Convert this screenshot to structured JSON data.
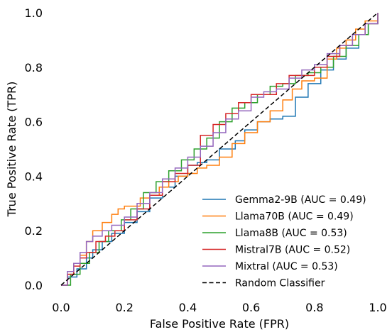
{
  "chart_data": {
    "type": "line",
    "title": "",
    "xlabel": "False Positive Rate (FPR)",
    "ylabel": "True Positive Rate (TPR)",
    "xlim": [
      0.0,
      1.0
    ],
    "ylim": [
      0.0,
      1.0
    ],
    "x_ticks": [
      "0.0",
      "0.2",
      "0.4",
      "0.6",
      "0.8",
      "1.0"
    ],
    "y_ticks": [
      "0.0",
      "0.2",
      "0.4",
      "0.6",
      "0.8",
      "1.0"
    ],
    "grid": false,
    "legend_position": "lower-right",
    "series": [
      {
        "name": "Gemma2-9B (AUC = 0.49)",
        "color": "#1f77b4",
        "style": "step",
        "x": [
          0.0,
          0.02,
          0.05,
          0.08,
          0.1,
          0.13,
          0.16,
          0.2,
          0.24,
          0.28,
          0.32,
          0.36,
          0.4,
          0.43,
          0.46,
          0.5,
          0.55,
          0.58,
          0.62,
          0.66,
          0.7,
          0.74,
          0.78,
          0.82,
          0.86,
          0.9,
          0.94,
          0.97,
          1.0
        ],
        "y": [
          0.0,
          0.03,
          0.06,
          0.1,
          0.13,
          0.16,
          0.19,
          0.23,
          0.27,
          0.32,
          0.36,
          0.4,
          0.44,
          0.45,
          0.46,
          0.5,
          0.53,
          0.57,
          0.6,
          0.61,
          0.62,
          0.69,
          0.74,
          0.79,
          0.83,
          0.87,
          0.92,
          0.96,
          1.0
        ]
      },
      {
        "name": "Llama70B (AUC = 0.49)",
        "color": "#ff7f0e",
        "style": "step",
        "x": [
          0.0,
          0.02,
          0.04,
          0.06,
          0.08,
          0.1,
          0.13,
          0.16,
          0.18,
          0.2,
          0.22,
          0.25,
          0.28,
          0.31,
          0.34,
          0.37,
          0.4,
          0.43,
          0.46,
          0.5,
          0.54,
          0.58,
          0.62,
          0.66,
          0.7,
          0.73,
          0.76,
          0.8,
          0.84,
          0.87,
          0.9,
          0.93,
          0.96,
          1.0
        ],
        "y": [
          0.0,
          0.04,
          0.08,
          0.11,
          0.16,
          0.2,
          0.23,
          0.26,
          0.28,
          0.29,
          0.29,
          0.32,
          0.33,
          0.36,
          0.38,
          0.4,
          0.41,
          0.43,
          0.44,
          0.47,
          0.52,
          0.56,
          0.6,
          0.64,
          0.68,
          0.72,
          0.75,
          0.76,
          0.83,
          0.87,
          0.9,
          0.94,
          0.97,
          1.0
        ]
      },
      {
        "name": "Llama8B (AUC = 0.53)",
        "color": "#2ca02c",
        "style": "step",
        "x": [
          0.0,
          0.03,
          0.06,
          0.09,
          0.12,
          0.15,
          0.19,
          0.22,
          0.26,
          0.3,
          0.34,
          0.38,
          0.42,
          0.46,
          0.5,
          0.54,
          0.58,
          0.62,
          0.66,
          0.7,
          0.74,
          0.78,
          0.82,
          0.86,
          0.9,
          0.94,
          0.97,
          1.0
        ],
        "y": [
          0.0,
          0.04,
          0.08,
          0.12,
          0.16,
          0.2,
          0.24,
          0.28,
          0.34,
          0.38,
          0.42,
          0.46,
          0.5,
          0.54,
          0.6,
          0.65,
          0.67,
          0.7,
          0.73,
          0.74,
          0.77,
          0.78,
          0.8,
          0.84,
          0.88,
          0.92,
          0.96,
          1.0
        ]
      },
      {
        "name": "Mistral7B (AUC = 0.52)",
        "color": "#d62728",
        "style": "step",
        "x": [
          0.0,
          0.02,
          0.04,
          0.06,
          0.08,
          0.11,
          0.14,
          0.17,
          0.2,
          0.24,
          0.28,
          0.32,
          0.36,
          0.4,
          0.44,
          0.48,
          0.52,
          0.56,
          0.6,
          0.64,
          0.68,
          0.72,
          0.76,
          0.8,
          0.84,
          0.88,
          0.92,
          0.96,
          1.0
        ],
        "y": [
          0.0,
          0.04,
          0.07,
          0.1,
          0.12,
          0.16,
          0.18,
          0.2,
          0.24,
          0.28,
          0.33,
          0.38,
          0.41,
          0.44,
          0.55,
          0.59,
          0.63,
          0.67,
          0.7,
          0.7,
          0.74,
          0.77,
          0.77,
          0.8,
          0.84,
          0.88,
          0.92,
          0.96,
          1.0
        ]
      },
      {
        "name": "Mixtral (AUC = 0.53)",
        "color": "#9467bd",
        "style": "step",
        "x": [
          0.0,
          0.02,
          0.04,
          0.06,
          0.08,
          0.1,
          0.13,
          0.16,
          0.2,
          0.24,
          0.28,
          0.32,
          0.36,
          0.4,
          0.44,
          0.48,
          0.52,
          0.56,
          0.6,
          0.64,
          0.68,
          0.72,
          0.76,
          0.8,
          0.84,
          0.88,
          0.92,
          0.96,
          1.0
        ],
        "y": [
          0.0,
          0.05,
          0.08,
          0.12,
          0.16,
          0.18,
          0.2,
          0.22,
          0.25,
          0.3,
          0.34,
          0.39,
          0.43,
          0.47,
          0.51,
          0.56,
          0.61,
          0.64,
          0.69,
          0.71,
          0.72,
          0.76,
          0.79,
          0.81,
          0.85,
          0.88,
          0.92,
          0.96,
          1.0
        ]
      },
      {
        "name": "Random Classifier",
        "color": "#000000",
        "style": "dashed",
        "x": [
          0.0,
          1.0
        ],
        "y": [
          0.0,
          1.0
        ]
      }
    ]
  }
}
